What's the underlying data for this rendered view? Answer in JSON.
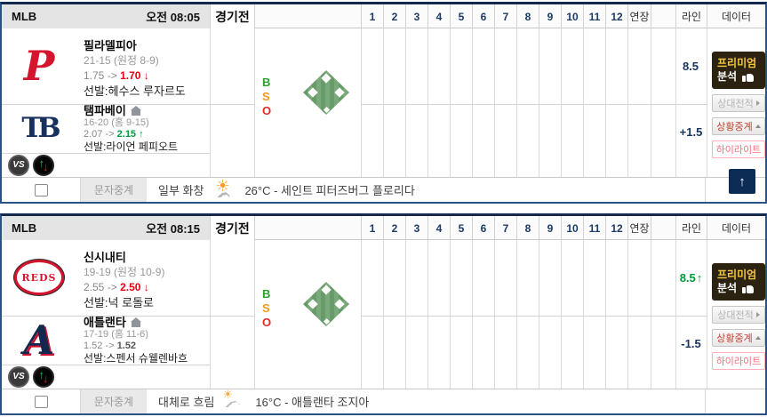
{
  "header_columns": {
    "innings": [
      "1",
      "2",
      "3",
      "4",
      "5",
      "6",
      "7",
      "8",
      "9",
      "10",
      "11",
      "12"
    ],
    "extra": "연장",
    "line": "라인",
    "data": "데이터"
  },
  "icons": {
    "vs": "VS",
    "up_arrow": "↑",
    "down_arrow": "↓",
    "sun": "☀",
    "cloud": "☁",
    "scroll_top": "↑"
  },
  "colors": {
    "accent_navy": "#16335e",
    "odds_down_red": "#e60012",
    "odds_up_green": "#009a3c",
    "odds_flat_dark": "#555555",
    "premium_gold": "#f3c83e",
    "highlight_pink": "#ff6b81"
  },
  "games": [
    {
      "league": "MLB",
      "start_time": "오전 08:05",
      "status": "경기전",
      "away": {
        "name": "필라델피아",
        "record": "21-15 (원정 8-9)",
        "odds_before": "1.75",
        "odds_sep": "->",
        "odds_after": "1.70",
        "odds_arrow": "↓",
        "odds_after_color": "#e60012",
        "pitcher": "선발:헤수스 루자르도",
        "logo_text": "P"
      },
      "home": {
        "name": "탬파베이",
        "record": "16-20 (홈 9-15)",
        "odds_before": "2.07",
        "odds_sep": "->",
        "odds_after": "2.15",
        "odds_arrow": "↑",
        "odds_after_color": "#009a3c",
        "pitcher": "선발:라이언 페피오트",
        "logo_text": "TB"
      },
      "bso": {
        "b": "B",
        "s": "S",
        "o": "O"
      },
      "line": {
        "away_value": "8.5",
        "away_arrow": "",
        "away_color": "#16335e",
        "home_value": "+1.5",
        "home_color": "#16335e"
      },
      "buttons": {
        "premium_top": "프리미엄",
        "premium_bottom": "분석",
        "h2h": "상대전적",
        "live": "상황중계",
        "highlight": "하이라이트"
      },
      "footer": {
        "sms": "문자중계",
        "weather_desc": "일부 화창",
        "weather_detail": "26°C - 세인트 피터즈버그 플로리다"
      }
    },
    {
      "league": "MLB",
      "start_time": "오전 08:15",
      "status": "경기전",
      "away": {
        "name": "신시내티",
        "record": "19-19 (원정 10-9)",
        "odds_before": "2.55",
        "odds_sep": "->",
        "odds_after": "2.50",
        "odds_arrow": "↓",
        "odds_after_color": "#e60012",
        "pitcher": "선발:넉 로돌로",
        "logo_text": "REDS"
      },
      "home": {
        "name": "애틀랜타",
        "record": "17-19 (홈 11-6)",
        "odds_before": "1.52",
        "odds_sep": "->",
        "odds_after": "1.52",
        "odds_arrow": "",
        "odds_after_color": "#555555",
        "pitcher": "선발:스펜서 슈웰렌바흐",
        "logo_text": "A"
      },
      "bso": {
        "b": "B",
        "s": "S",
        "o": "O"
      },
      "line": {
        "away_value": "8.5",
        "away_arrow": "↑",
        "away_color": "#009a3c",
        "home_value": "-1.5",
        "home_color": "#16335e"
      },
      "buttons": {
        "premium_top": "프리미엄",
        "premium_bottom": "분석",
        "h2h": "상대전적",
        "live": "상황중계",
        "highlight": "하이라이트"
      },
      "footer": {
        "sms": "문자중계",
        "weather_desc": "대체로 흐림",
        "weather_detail": "16°C - 애틀랜타 조지아"
      }
    }
  ]
}
